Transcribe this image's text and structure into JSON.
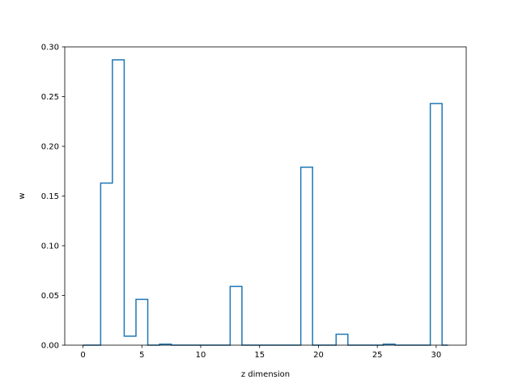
{
  "chart_data": {
    "type": "step",
    "title": "",
    "xlabel": "z dimension",
    "ylabel": "w",
    "xlim": [
      -1.55,
      32.55
    ],
    "ylim": [
      0.0,
      0.3
    ],
    "x_ticks": [
      0,
      5,
      10,
      15,
      20,
      25,
      30
    ],
    "y_ticks": [
      0.0,
      0.05,
      0.1,
      0.15,
      0.2,
      0.25,
      0.3
    ],
    "x_tick_labels": [
      "0",
      "5",
      "10",
      "15",
      "20",
      "25",
      "30"
    ],
    "y_tick_labels": [
      "0.00",
      "0.05",
      "0.10",
      "0.15",
      "0.20",
      "0.25",
      "0.30"
    ],
    "grid": false,
    "color": "#1f77b4",
    "series": [
      {
        "x": [
          0,
          1,
          2,
          3,
          4,
          5,
          6,
          7,
          8,
          9,
          10,
          11,
          12,
          13,
          14,
          15,
          16,
          17,
          18,
          19,
          20,
          21,
          22,
          23,
          24,
          25,
          26,
          27,
          28,
          29,
          30,
          31
        ],
        "values": [
          0,
          0,
          0.163,
          0.287,
          0.009,
          0.046,
          0,
          0.001,
          0,
          0,
          0,
          0,
          0,
          0.059,
          0,
          0,
          0,
          0,
          0,
          0.179,
          0,
          0,
          0.011,
          0,
          0,
          0,
          0.001,
          0,
          0,
          0,
          0.243,
          0
        ]
      }
    ]
  }
}
